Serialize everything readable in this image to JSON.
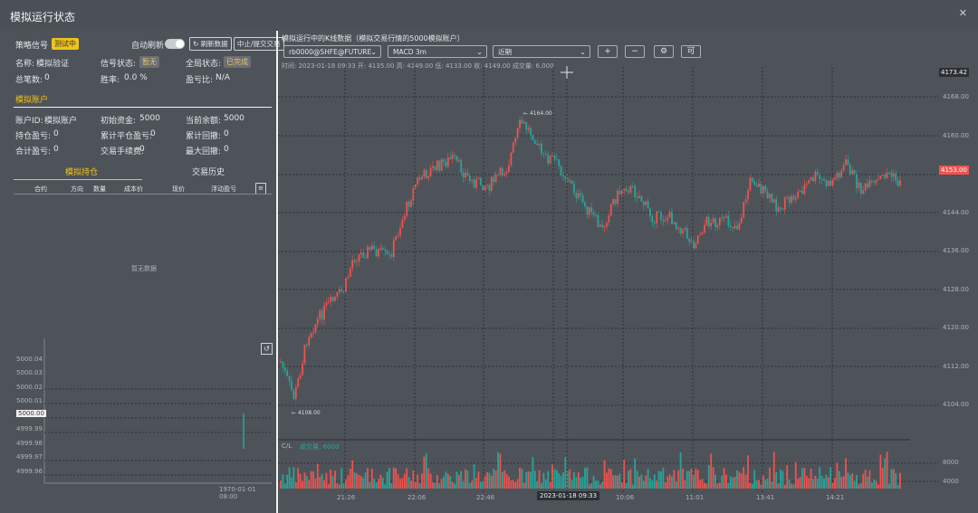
{
  "window": {
    "title": "模拟运行状态",
    "close_icon": "close-icon"
  },
  "status": {
    "strategy_label": "策略信号",
    "strategy_value": "测试中",
    "auto_refresh_label": "自动刷新",
    "refresh_label": "刷新数据",
    "sim_btn_label": "中止/提交交易",
    "name_label": "名称:",
    "name_value": "模拟验证",
    "signal_label": "信号状态:",
    "signal_value": "暂无",
    "position_label": "全局状态:",
    "position_value": "已完成",
    "trades_label": "总笔数:",
    "trades_value": "0",
    "winrate_label": "胜率:",
    "winrate_value": "0.0 %",
    "pnl_ratio_label": "盈亏比:",
    "pnl_ratio_value": "N/A"
  },
  "account": {
    "section_title": "模拟账户",
    "account_label": "账户ID:",
    "account_value": "模拟账户",
    "initial_label": "初始资金:",
    "initial_value": "5000",
    "current_label": "当前余额:",
    "current_value": "5000",
    "open_pnl_label": "持仓盈亏:",
    "open_pnl_value": "0",
    "closed_pnl_label": "累计平仓盈亏:",
    "closed_pnl_value": "0",
    "drawdown_label": "累计回撤:",
    "drawdown_value": "0",
    "total_pnl_label": "合计盈亏:",
    "total_pnl_value": "0",
    "fees_label": "交易手续费:",
    "fees_value": "0",
    "max_loss_label": "最大回撤:",
    "max_loss_value": "0"
  },
  "tabs": [
    {
      "label": "模拟持仓"
    },
    {
      "label": "交易历史"
    }
  ],
  "positions_table": {
    "columns": [
      "合约",
      "方向",
      "数量",
      "成本价",
      "现价",
      "浮动盈亏"
    ],
    "empty_text": "暂无数据"
  },
  "equity_chart": {
    "reset_label": "↺",
    "y_ticks": [
      "5000.04",
      "5000.03",
      "5000.02",
      "5000.01",
      "5000.00",
      "4999.99",
      "4999.98",
      "4999.97",
      "4999.96"
    ],
    "current_value": "5000.00",
    "x_label": "1970-01-01 08:00"
  },
  "main_chart": {
    "caption": "模拟运行中的K线数据（模拟交易行情的5000模拟账户）",
    "symbol_select": "rb0000@SHFE@FUTURE",
    "indicator_select": "MACD 3m",
    "period_select": "近期",
    "zoom_in": "+",
    "zoom_out": "−",
    "settings_icon": "gear-icon",
    "more": "可",
    "ohlc_line": "时间: 2023-01-18 09:33    开: 4135.00    高: 4149.00    低: 4133.00    收: 4149.00    成交量: 6,000",
    "current_price": "4153.00",
    "top_price": "4173.42",
    "high_marker": "4164.00",
    "low_marker": "4108.00",
    "crosshair_time": "2023-01-18 09:33",
    "y_ticks": [
      "4168.00",
      "4160.00",
      "4152.00",
      "4144.00",
      "4136.00",
      "4128.00",
      "4120.00",
      "4112.00",
      "4104.00"
    ],
    "x_ticks": [
      "21:26",
      "22:06",
      "22:46",
      "10:06",
      "11:01",
      "13:41",
      "14:21"
    ],
    "volume_label": "C/L",
    "volume_caption": "成交量: 6000",
    "volume_ticks": [
      "8000",
      "4000"
    ]
  },
  "colors": {
    "up": "#ef5350",
    "down": "#26a69a",
    "accent": "#f0c419",
    "background": "#4e5359"
  }
}
